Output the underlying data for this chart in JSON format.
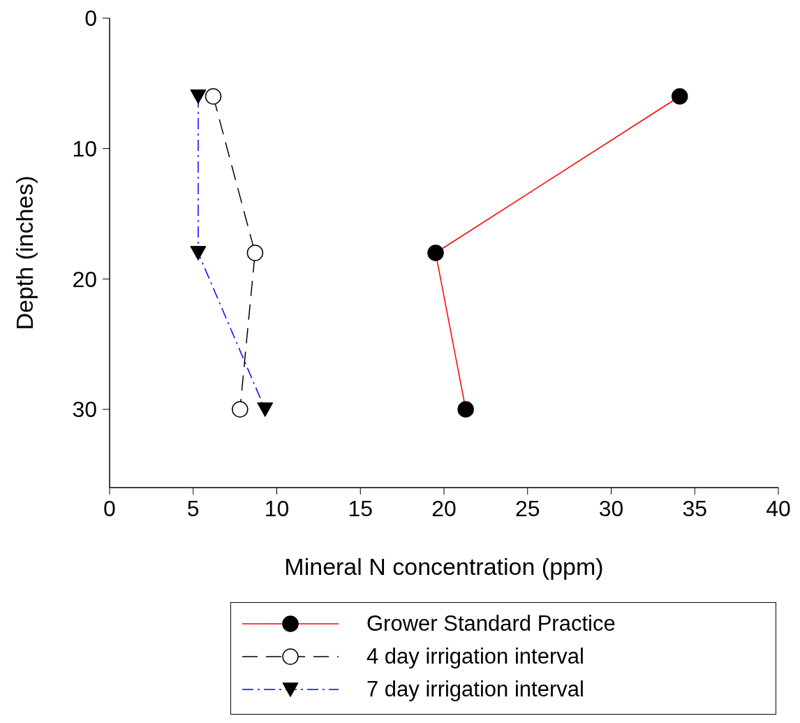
{
  "chart_data": {
    "type": "line",
    "xlabel": "Mineral N concentration (ppm)",
    "ylabel": "Depth (inches)",
    "xlim": [
      0,
      40
    ],
    "xticks": [
      0,
      5,
      10,
      15,
      20,
      25,
      30,
      35,
      40
    ],
    "ylim": [
      36,
      0
    ],
    "yticks": [
      0,
      10,
      20,
      30
    ],
    "grid": false,
    "legend": "bottom",
    "series": [
      {
        "name": "Grower Standard Practice",
        "color": "#ff0000",
        "marker": "circle",
        "line_style": "solid",
        "x": [
          34.1,
          19.5,
          21.3
        ],
        "values": [
          6,
          18,
          30
        ]
      },
      {
        "name": "4 day irrigation interval",
        "color": "#000000",
        "marker": "circle-open",
        "line_style": "dashed",
        "x": [
          6.2,
          8.7,
          7.8
        ],
        "values": [
          6,
          18,
          30
        ]
      },
      {
        "name": "7 day irrigation interval",
        "color": "#0000ff",
        "marker": "triangle",
        "line_style": "dashdot",
        "x": [
          5.3,
          5.3,
          9.3
        ],
        "values": [
          6,
          18,
          30
        ]
      }
    ]
  }
}
